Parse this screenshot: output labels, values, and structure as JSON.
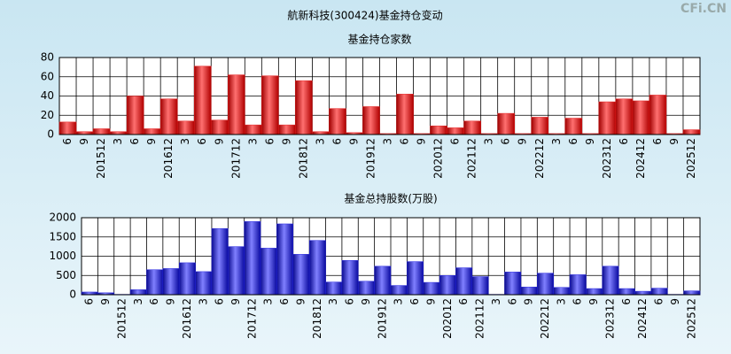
{
  "title": "航新科技(300424)基金持仓变动",
  "watermark": "CFi.CN",
  "chart_data": [
    {
      "type": "bar",
      "title": "基金持仓家数",
      "categories": [
        "6",
        "9",
        "201512",
        "3",
        "6",
        "9",
        "201612",
        "3",
        "6",
        "9",
        "201712",
        "3",
        "6",
        "9",
        "201812",
        "3",
        "6",
        "9",
        "201912",
        "3",
        "6",
        "9",
        "202012",
        "6",
        "202112",
        "3",
        "6",
        "9",
        "202212",
        "3",
        "6",
        "9",
        "202312",
        "6",
        "202412",
        "6",
        "9",
        "202512"
      ],
      "values": [
        13,
        3,
        6,
        3,
        40,
        6,
        37,
        14,
        71,
        15,
        62,
        10,
        61,
        10,
        56,
        3,
        27,
        2,
        29,
        1,
        42,
        1,
        9,
        7,
        14,
        1,
        22,
        1,
        18,
        1,
        17,
        1,
        34,
        37,
        35,
        41,
        1,
        5
      ],
      "color": "#e52222",
      "ylim": [
        0,
        80
      ],
      "yticks": [
        0,
        20,
        40,
        60,
        80
      ],
      "grid": true
    },
    {
      "type": "bar",
      "title": "基金总持股数(万股)",
      "categories": [
        "6",
        "9",
        "201512",
        "3",
        "6",
        "9",
        "201612",
        "3",
        "6",
        "9",
        "201712",
        "3",
        "6",
        "9",
        "201812",
        "3",
        "6",
        "9",
        "201912",
        "3",
        "6",
        "9",
        "202012",
        "6",
        "202112",
        "3",
        "6",
        "9",
        "202212",
        "3",
        "6",
        "9",
        "202312",
        "6",
        "202412",
        "6",
        "9",
        "202512"
      ],
      "values": [
        70,
        50,
        10,
        130,
        650,
        680,
        830,
        600,
        1720,
        1250,
        1900,
        1210,
        1840,
        1050,
        1410,
        330,
        890,
        350,
        740,
        240,
        860,
        320,
        500,
        700,
        470,
        10,
        590,
        200,
        560,
        190,
        520,
        160,
        740,
        160,
        90,
        170,
        10,
        100
      ],
      "color": "#2a2ae0",
      "ylim": [
        0,
        2000
      ],
      "yticks": [
        0,
        500,
        1000,
        1500,
        2000
      ],
      "grid": true
    }
  ]
}
